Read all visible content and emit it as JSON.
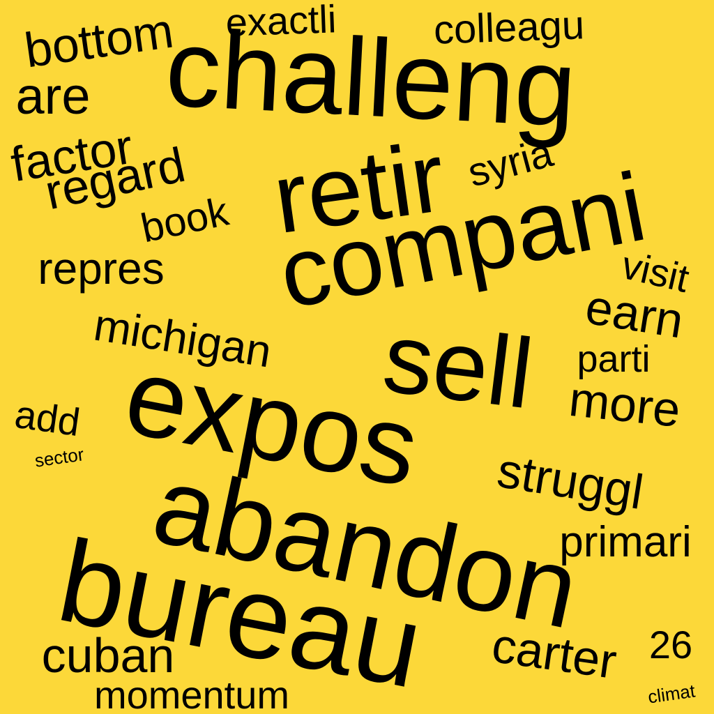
{
  "colors": {
    "background": "#fcd839",
    "text": "#000000"
  },
  "words": [
    "challeng",
    "retir",
    "compani",
    "sell",
    "expos",
    "abandon",
    "bureau",
    "bottom",
    "exactli",
    "colleagu",
    "are",
    "factor",
    "regard",
    "syria",
    "book",
    "repres",
    "visit",
    "earn",
    "michigan",
    "parti",
    "more",
    "add",
    "sector",
    "struggl",
    "primari",
    "cuban",
    "carter",
    "26",
    "momentum",
    "climat"
  ]
}
